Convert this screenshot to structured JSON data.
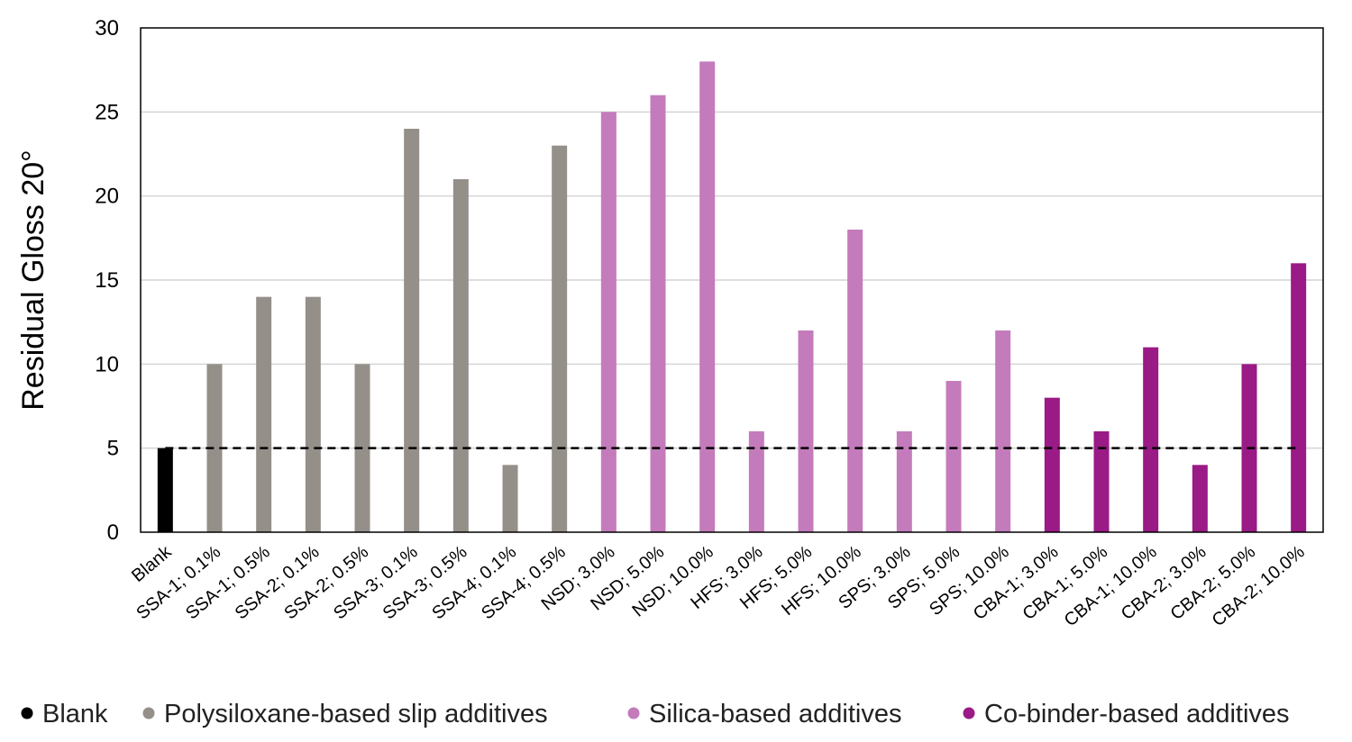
{
  "chart_data": {
    "type": "bar",
    "ylabel": "Residual Gloss 20°",
    "xlabel": "",
    "ylim": [
      0,
      30
    ],
    "yticks": [
      0,
      5,
      10,
      15,
      20,
      25,
      30
    ],
    "grid": true,
    "reference_line": {
      "value": 5,
      "style": "dashed"
    },
    "categories": [
      "Blank",
      "SSA-1; 0.1%",
      "SSA-1; 0.5%",
      "SSA-2; 0.1%",
      "SSA-2; 0.5%",
      "SSA-3; 0.1%",
      "SSA-3; 0.5%",
      "SSA-4; 0.1%",
      "SSA-4; 0.5%",
      "NSD; 3.0%",
      "NSD; 5.0%",
      "NSD; 10.0%",
      "HFS; 3.0%",
      "HFS; 5.0%",
      "HFS; 10.0%",
      "SPS; 3.0%",
      "SPS; 5.0%",
      "SPS; 10.0%",
      "CBA-1; 3.0%",
      "CBA-1; 5.0%",
      "CBA-1; 10.0%",
      "CBA-2; 3.0%",
      "CBA-2; 5.0%",
      "CBA-2; 10.0%"
    ],
    "values": [
      5,
      10,
      14,
      14,
      10,
      24,
      21,
      4,
      23,
      25,
      26,
      28,
      6,
      12,
      18,
      6,
      9,
      12,
      8,
      6,
      11,
      4,
      10,
      16
    ],
    "groups": [
      0,
      1,
      1,
      1,
      1,
      1,
      1,
      1,
      1,
      2,
      2,
      2,
      2,
      2,
      2,
      2,
      2,
      2,
      3,
      3,
      3,
      3,
      3,
      3
    ],
    "series": [
      {
        "name": "Blank",
        "color": "#000000"
      },
      {
        "name": "Polysiloxane-based slip additives",
        "color": "#958f8a"
      },
      {
        "name": "Silica-based additives",
        "color": "#c47bbc"
      },
      {
        "name": "Co-binder-based additives",
        "color": "#9a1a86"
      }
    ],
    "legend": {
      "placement": "bottom"
    }
  }
}
